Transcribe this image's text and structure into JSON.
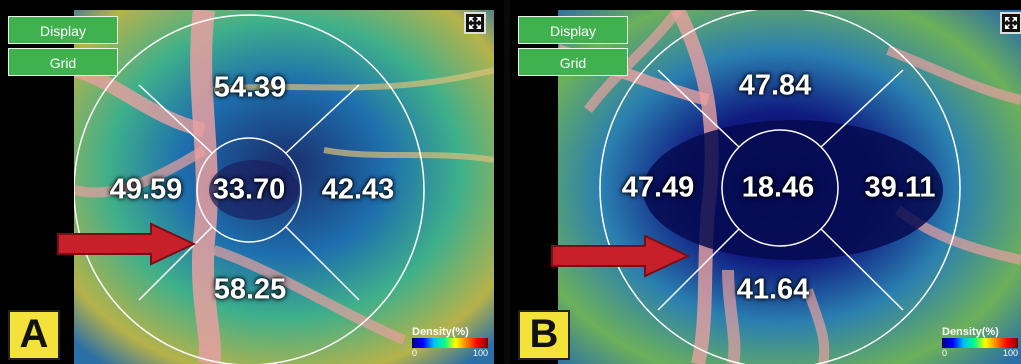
{
  "panels": [
    {
      "letter": "A",
      "buttons": {
        "display": "Display",
        "grid": "Grid"
      },
      "values": {
        "superior": "54.39",
        "temporal": "49.59",
        "center": "33.70",
        "nasal": "42.43",
        "inferior": "58.25"
      },
      "legend": {
        "title": "Density(%)",
        "min": "0",
        "max": "100"
      }
    },
    {
      "letter": "B",
      "buttons": {
        "display": "Display",
        "grid": "Grid"
      },
      "values": {
        "superior": "47.84",
        "temporal": "47.49",
        "center": "18.46",
        "nasal": "39.11",
        "inferior": "41.64"
      },
      "legend": {
        "title": "Density(%)",
        "min": "0",
        "max": "100"
      }
    }
  ],
  "colors": {
    "button": "#3fb24f",
    "arrow": "#c8202a",
    "label": "#f2e23a"
  },
  "icons": {
    "expand": "expand-icon",
    "arrow": "red-arrow-icon"
  }
}
